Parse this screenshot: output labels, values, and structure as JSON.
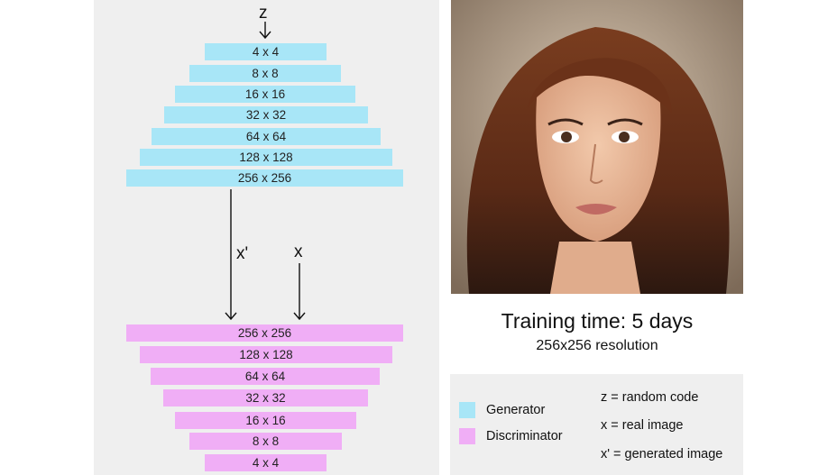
{
  "generator": {
    "input": "z",
    "layers": [
      "4 x 4",
      "8 x 8",
      "16 x 16",
      "32 x 32",
      "64 x 64",
      "128 x 128",
      "256 x 256"
    ]
  },
  "discriminator": {
    "inputs": [
      "x'",
      "x"
    ],
    "layers": [
      "256 x 256",
      "128 x 128",
      "64 x 64",
      "32 x 32",
      "16 x 16",
      "8 x 8",
      "4 x 4"
    ]
  },
  "caption": {
    "title": "Training time: 5 days",
    "subtitle": "256x256 resolution"
  },
  "legend": {
    "items": [
      {
        "label": "Generator",
        "color": "#a8e6f7"
      },
      {
        "label": "Discriminator",
        "color": "#f0aef6"
      }
    ],
    "keys": [
      "z = random code",
      "x = real image",
      "x' = generated image"
    ]
  }
}
